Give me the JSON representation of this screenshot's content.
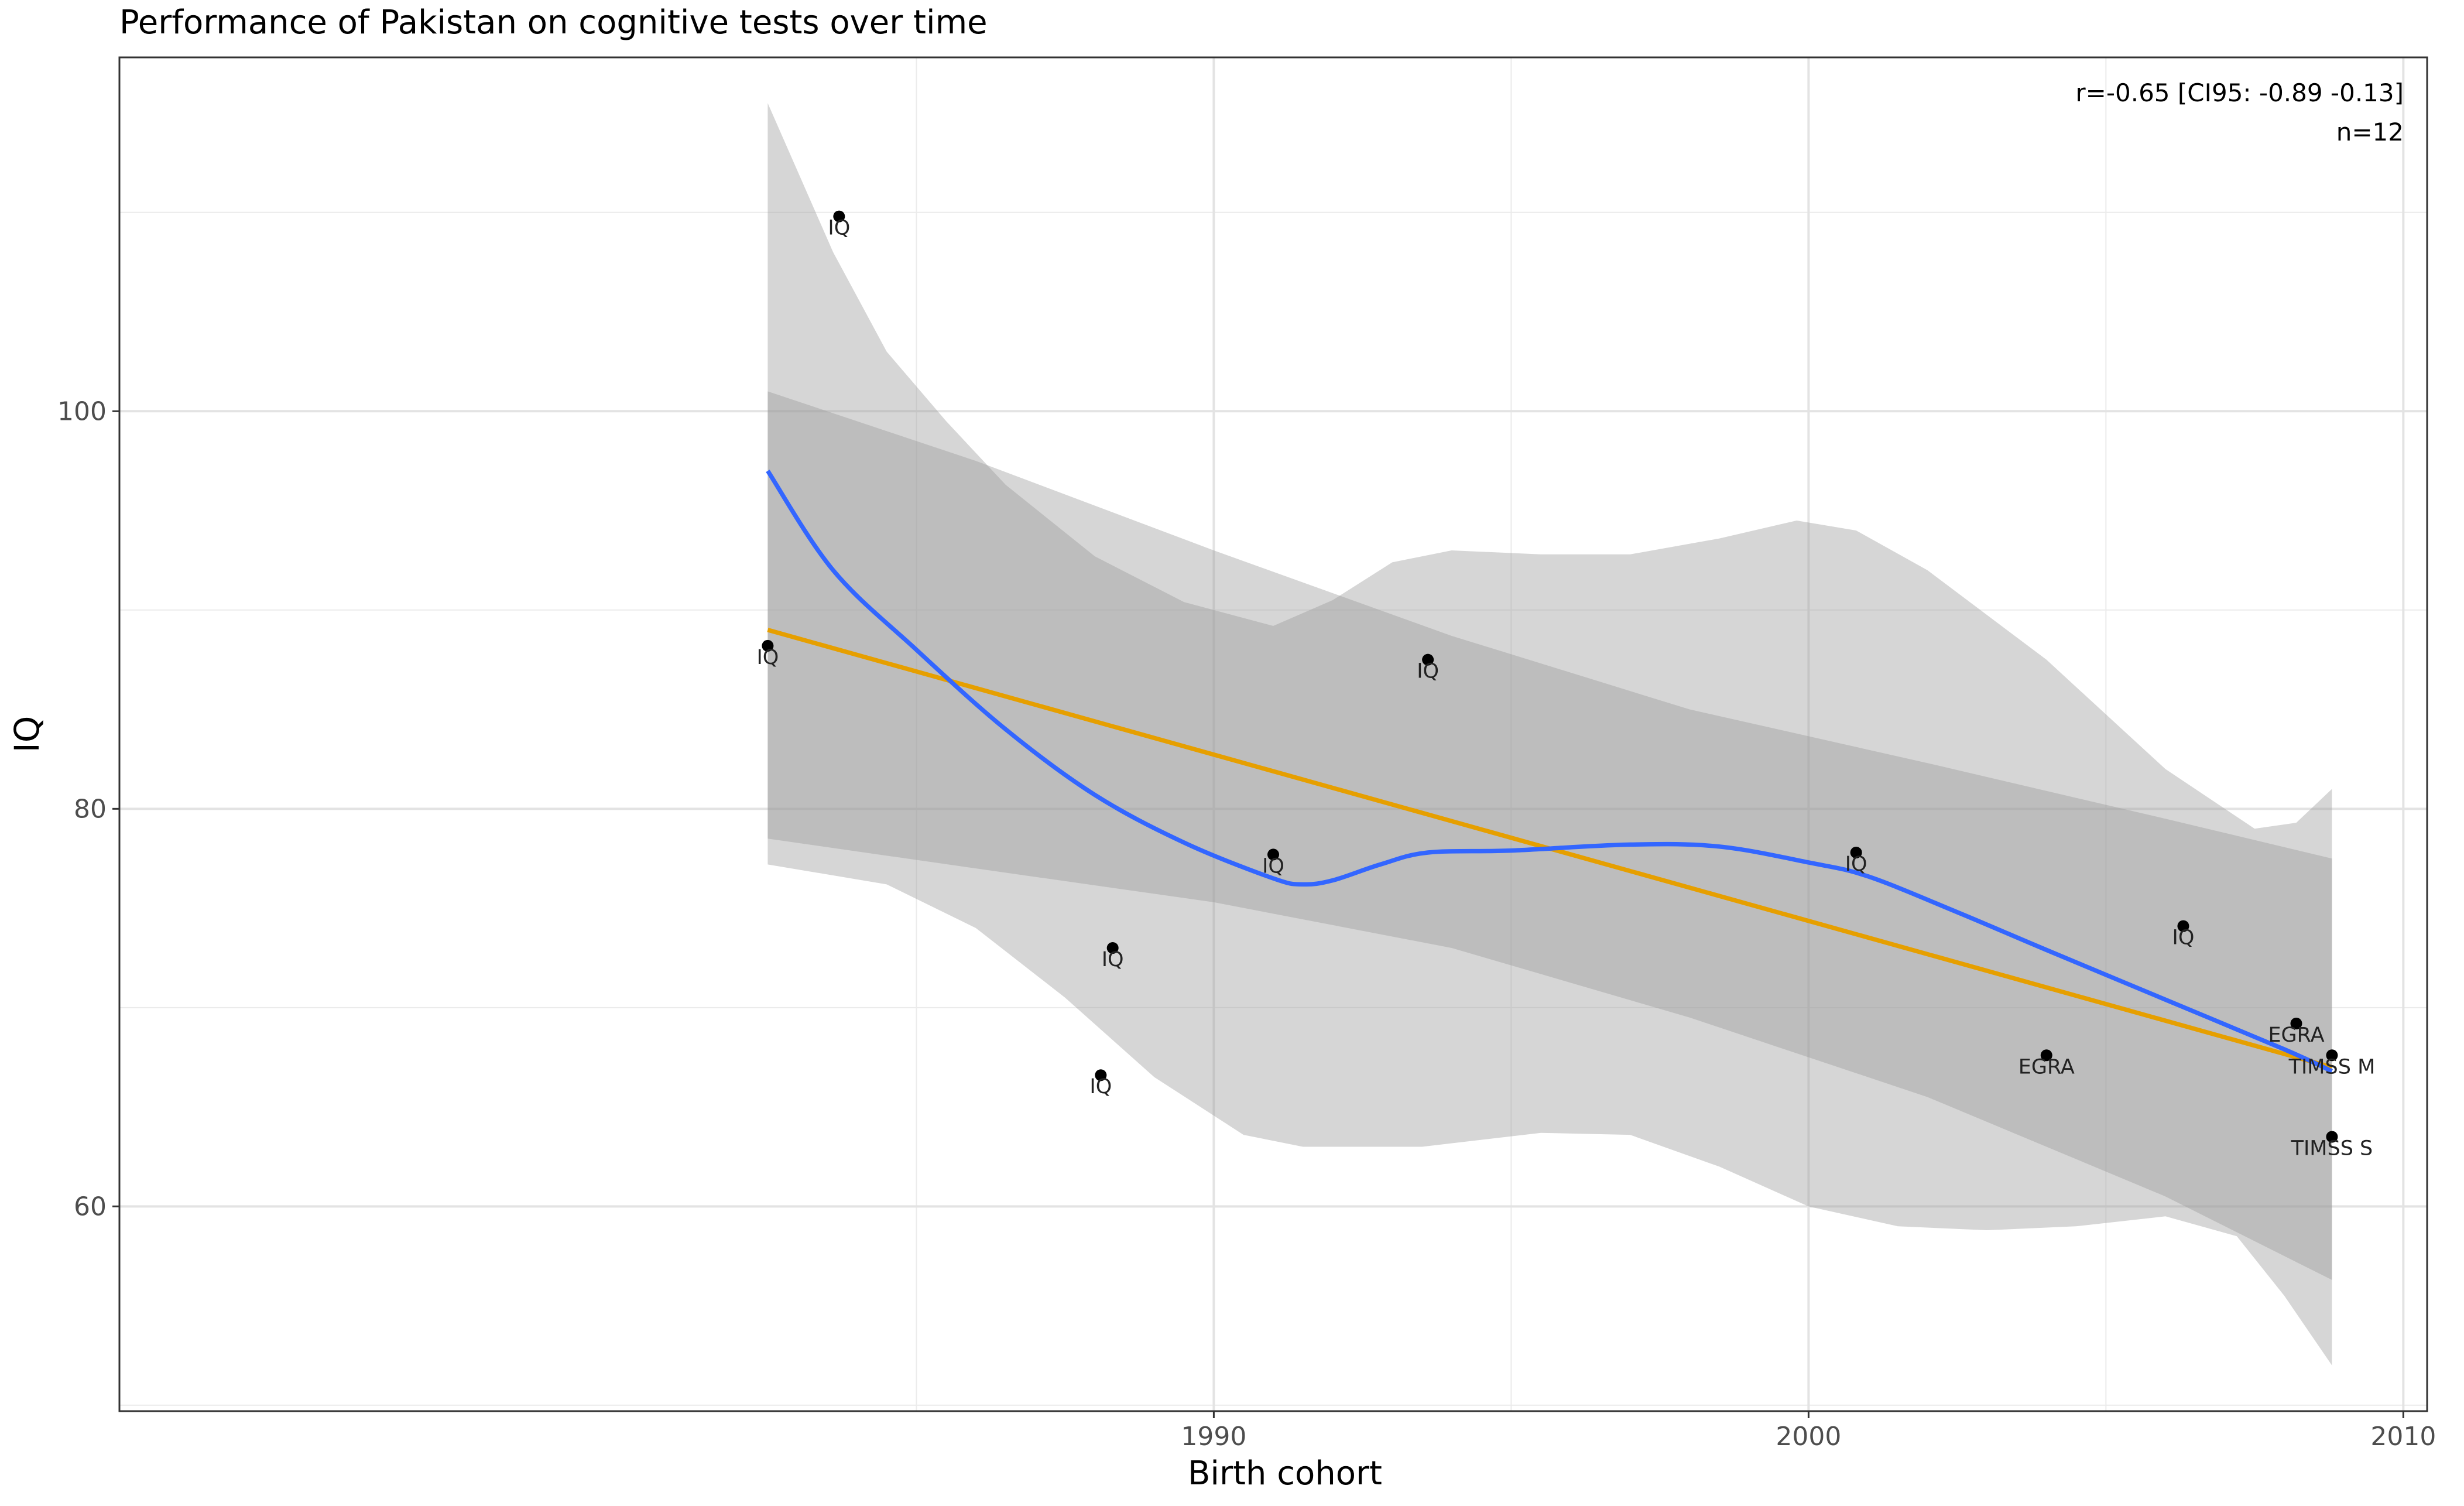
{
  "chart_data": {
    "type": "scatter",
    "title": "Performance of Pakistan on cognitive tests over time",
    "xlabel": "Birth cohort",
    "ylabel": "IQ",
    "xlim": [
      1971.6,
      2010.4
    ],
    "ylim": [
      49.7,
      117.8
    ],
    "x_ticks": [
      1990,
      2000,
      2010
    ],
    "x_minor_ticks": [
      1985,
      1995,
      2005
    ],
    "y_ticks": [
      60,
      80,
      100
    ],
    "y_minor_ticks": [
      50,
      70,
      90,
      110
    ],
    "grid": true,
    "annotation": [
      "r=-0.65 [CI95: -0.89 -0.13]",
      "n=12"
    ],
    "annotation_position": "top-right",
    "points": [
      {
        "x": 1982.5,
        "y": 88.2,
        "label": "IQ"
      },
      {
        "x": 1983.7,
        "y": 109.8,
        "label": "IQ"
      },
      {
        "x": 1988.3,
        "y": 73.0,
        "label": "IQ"
      },
      {
        "x": 1988.1,
        "y": 66.6,
        "label": "IQ"
      },
      {
        "x": 1991.0,
        "y": 77.7,
        "label": "IQ"
      },
      {
        "x": 1993.6,
        "y": 87.5,
        "label": "IQ"
      },
      {
        "x": 2000.8,
        "y": 77.8,
        "label": "IQ"
      },
      {
        "x": 2004.0,
        "y": 67.6,
        "label": "EGRA"
      },
      {
        "x": 2006.3,
        "y": 74.1,
        "label": "IQ"
      },
      {
        "x": 2008.2,
        "y": 69.2,
        "label": "EGRA"
      },
      {
        "x": 2008.8,
        "y": 67.6,
        "label": "TIMSS M"
      },
      {
        "x": 2008.8,
        "y": 63.5,
        "label": "TIMSS S"
      }
    ],
    "series": [
      {
        "fit": "linear",
        "color": "#E69F00",
        "x": [
          1982.5,
          2008.8
        ],
        "y": [
          89.0,
          67.0
        ],
        "ci_upper": [
          [
            1982.5,
            101.0
          ],
          [
            1986.0,
            97.5
          ],
          [
            1990.0,
            93.0
          ],
          [
            1994.0,
            88.7
          ],
          [
            1998.0,
            85.0
          ],
          [
            2002.0,
            82.3
          ],
          [
            2006.0,
            79.5
          ],
          [
            2008.8,
            77.5
          ]
        ],
        "ci_lower": [
          [
            1982.5,
            78.5
          ],
          [
            1986.0,
            77.0
          ],
          [
            1990.0,
            75.3
          ],
          [
            1994.0,
            73.0
          ],
          [
            1998.0,
            69.5
          ],
          [
            2002.0,
            65.5
          ],
          [
            2006.0,
            60.5
          ],
          [
            2008.8,
            56.3
          ]
        ]
      },
      {
        "fit": "loess",
        "color": "#3366FF",
        "curve": [
          [
            1982.5,
            97.0
          ],
          [
            1983.6,
            92.0
          ],
          [
            1985.0,
            88.0
          ],
          [
            1986.5,
            84.0
          ],
          [
            1988.0,
            80.7
          ],
          [
            1989.5,
            78.3
          ],
          [
            1991.0,
            76.5
          ],
          [
            1991.5,
            76.2
          ],
          [
            1992.0,
            76.4
          ],
          [
            1992.8,
            77.2
          ],
          [
            1993.6,
            77.8
          ],
          [
            1995.0,
            77.9
          ],
          [
            1997.0,
            78.2
          ],
          [
            1998.5,
            78.1
          ],
          [
            2000.0,
            77.3
          ],
          [
            2001.0,
            76.6
          ],
          [
            2002.5,
            74.8
          ],
          [
            2004.0,
            72.9
          ],
          [
            2006.0,
            70.4
          ],
          [
            2008.0,
            67.9
          ],
          [
            2008.8,
            66.8
          ]
        ],
        "ci_upper": [
          [
            1982.5,
            115.5
          ],
          [
            1983.6,
            108.0
          ],
          [
            1984.5,
            103.0
          ],
          [
            1985.5,
            99.5
          ],
          [
            1986.5,
            96.3
          ],
          [
            1988.0,
            92.7
          ],
          [
            1989.5,
            90.4
          ],
          [
            1991.0,
            89.2
          ],
          [
            1992.0,
            90.5
          ],
          [
            1993.0,
            92.4
          ],
          [
            1994.0,
            93.0
          ],
          [
            1995.5,
            92.8
          ],
          [
            1997.0,
            92.8
          ],
          [
            1998.5,
            93.6
          ],
          [
            1999.8,
            94.5
          ],
          [
            2000.8,
            94.0
          ],
          [
            2002.0,
            92.0
          ],
          [
            2004.0,
            87.5
          ],
          [
            2006.0,
            82.0
          ],
          [
            2007.5,
            79.0
          ],
          [
            2008.2,
            79.3
          ],
          [
            2008.8,
            81.0
          ]
        ],
        "ci_lower": [
          [
            1982.5,
            77.2
          ],
          [
            1984.5,
            76.2
          ],
          [
            1986.0,
            74.0
          ],
          [
            1987.5,
            70.5
          ],
          [
            1989.0,
            66.5
          ],
          [
            1990.5,
            63.6
          ],
          [
            1991.5,
            63.0
          ],
          [
            1993.5,
            63.0
          ],
          [
            1995.5,
            63.7
          ],
          [
            1997.0,
            63.6
          ],
          [
            1998.5,
            62.0
          ],
          [
            2000.0,
            60.0
          ],
          [
            2001.5,
            59.0
          ],
          [
            2003.0,
            58.8
          ],
          [
            2004.5,
            59.0
          ],
          [
            2006.0,
            59.5
          ],
          [
            2007.2,
            58.5
          ],
          [
            2008.0,
            55.5
          ],
          [
            2008.8,
            52.0
          ]
        ]
      }
    ]
  }
}
